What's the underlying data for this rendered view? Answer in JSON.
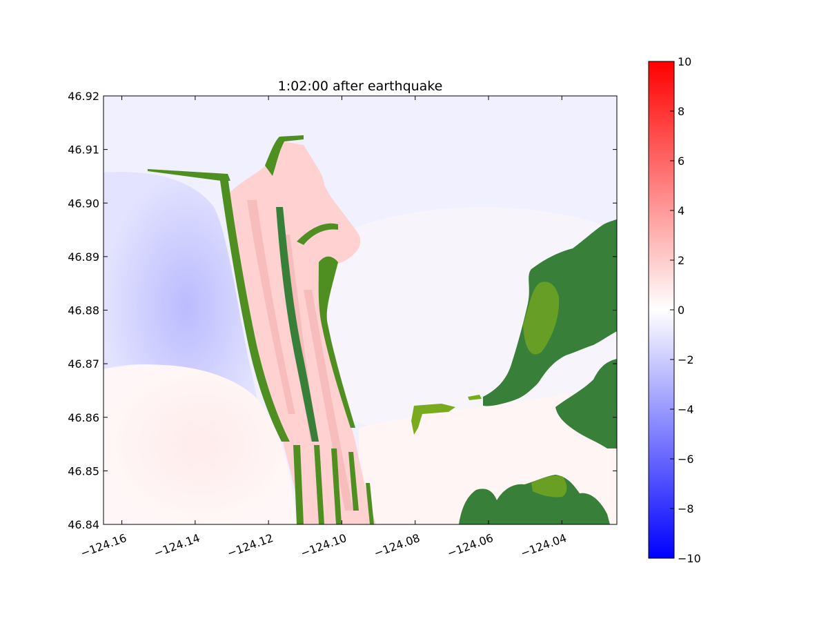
{
  "chart_data": {
    "type": "heatmap",
    "title": "1:02:00 after earthquake",
    "xlabel": "",
    "ylabel": "",
    "xlim": [
      -124.165,
      -124.025
    ],
    "ylim": [
      46.84,
      46.92
    ],
    "x_ticks": [
      -124.16,
      -124.14,
      -124.12,
      -124.1,
      -124.08,
      -124.06,
      -124.04
    ],
    "x_tick_labels": [
      "−124.16",
      "−124.14",
      "−124.12",
      "−124.10",
      "−124.08",
      "−124.06",
      "−124.04"
    ],
    "y_ticks": [
      46.84,
      46.85,
      46.86,
      46.87,
      46.88,
      46.89,
      46.9,
      46.91,
      46.92
    ],
    "y_tick_labels": [
      "46.84",
      "46.85",
      "46.86",
      "46.87",
      "46.88",
      "46.89",
      "46.90",
      "46.91",
      "46.92"
    ],
    "grid": false,
    "colorbar": {
      "cmap": "bwr",
      "range": [
        -10,
        10
      ],
      "ticks": [
        -10,
        -8,
        -6,
        -4,
        -2,
        0,
        2,
        4,
        6,
        8,
        10
      ],
      "tick_labels": [
        "−10",
        "−8",
        "−6",
        "−4",
        "−2",
        "0",
        "2",
        "4",
        "6",
        "8",
        "10"
      ],
      "color_min": "#0000ff",
      "color_mid": "#ffffff",
      "color_max": "#ff0000"
    },
    "land_colors": {
      "dark": "#38803a",
      "mid": "#4f8f22",
      "light": "#7aab1e"
    },
    "regions": [
      {
        "name": "ocean-north",
        "value": -0.6
      },
      {
        "name": "ocean-trough",
        "value": -2.8
      },
      {
        "name": "ocean-southwest",
        "value": 0.8
      },
      {
        "name": "spit-inundated",
        "value": 1.8
      },
      {
        "name": "bay-south",
        "value": 0.4
      }
    ]
  }
}
